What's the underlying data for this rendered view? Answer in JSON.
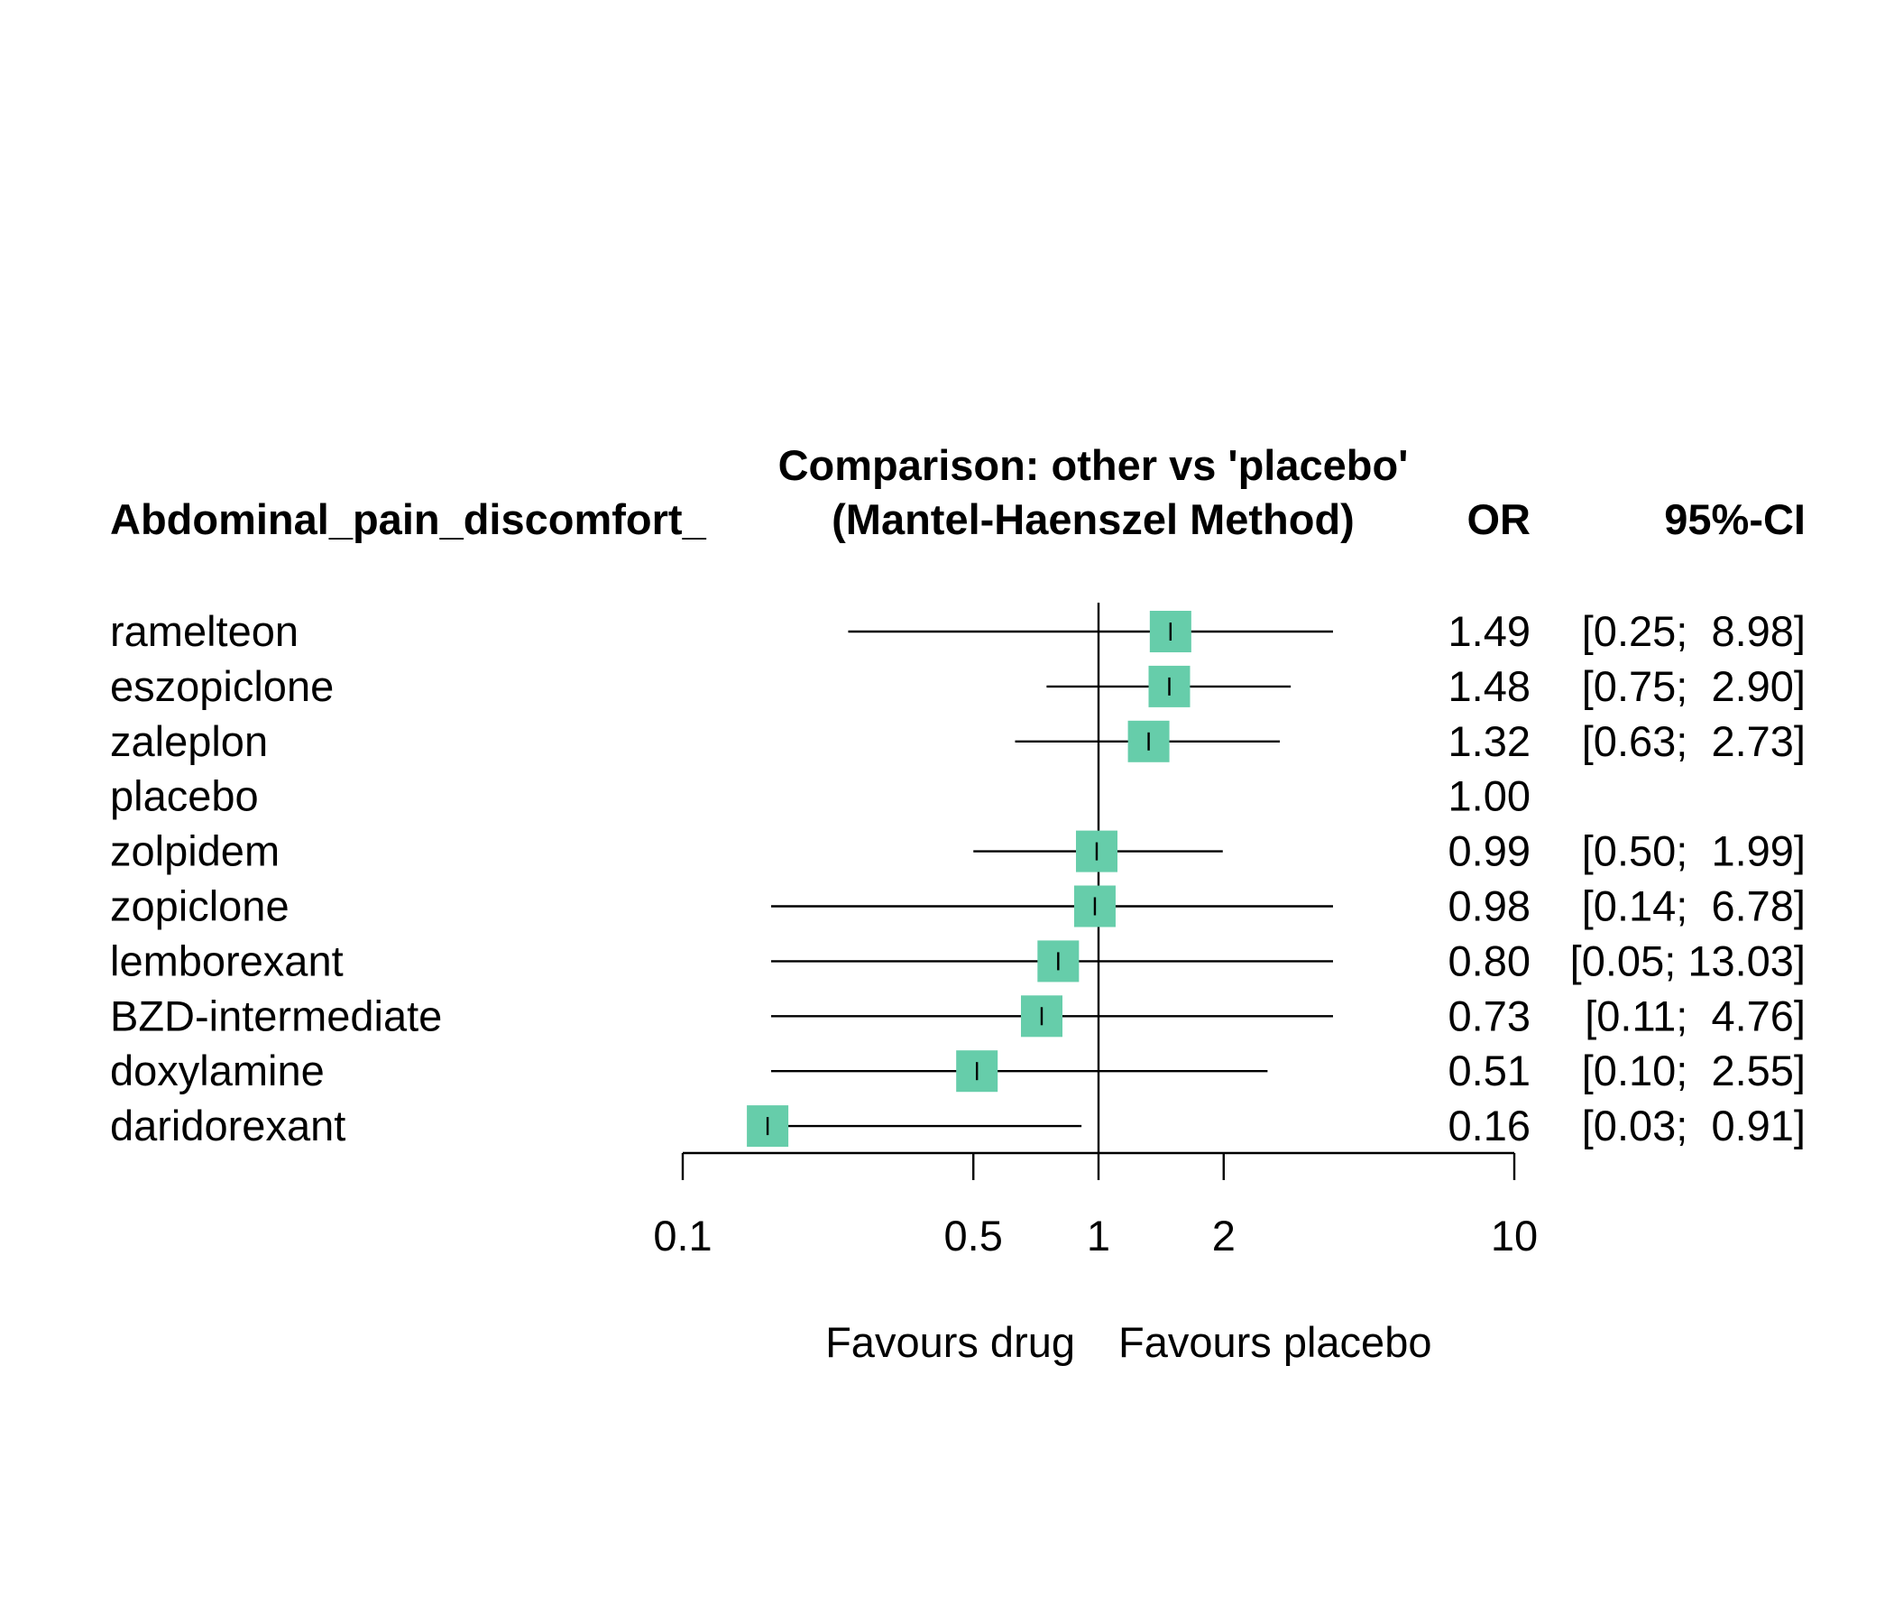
{
  "chart_data": {
    "type": "forest",
    "header": {
      "outcome_label": "Abdominal_pain_discomfort_",
      "title_line1": "Comparison: other vs 'placebo'",
      "title_line2": "(Mantel-Haenszel Method)",
      "or_header": "OR",
      "ci_header": "95%-CI"
    },
    "scale": "log",
    "xlim": [
      0.1,
      10
    ],
    "reference_value": 1,
    "ticks": [
      {
        "value": 0.1,
        "label": "0.1"
      },
      {
        "value": 0.5,
        "label": "0.5"
      },
      {
        "value": 1,
        "label": "1"
      },
      {
        "value": 2,
        "label": "2"
      },
      {
        "value": 10,
        "label": "10"
      }
    ],
    "favours_left": "Favours drug",
    "favours_right": "Favours placebo",
    "marker_color": "#66cdaa",
    "rows": [
      {
        "name": "ramelteon",
        "or": 1.49,
        "lower": 0.25,
        "upper": 8.98,
        "or_text": "1.49",
        "ci_text": "[0.25;  8.98]"
      },
      {
        "name": "eszopiclone",
        "or": 1.48,
        "lower": 0.75,
        "upper": 2.9,
        "or_text": "1.48",
        "ci_text": "[0.75;  2.90]"
      },
      {
        "name": "zaleplon",
        "or": 1.32,
        "lower": 0.63,
        "upper": 2.73,
        "or_text": "1.32",
        "ci_text": "[0.63;  2.73]"
      },
      {
        "name": "placebo",
        "or": 1.0,
        "lower": null,
        "upper": null,
        "or_text": "1.00",
        "ci_text": ""
      },
      {
        "name": "zolpidem",
        "or": 0.99,
        "lower": 0.5,
        "upper": 1.99,
        "or_text": "0.99",
        "ci_text": "[0.50;  1.99]"
      },
      {
        "name": "zopiclone",
        "or": 0.98,
        "lower": 0.14,
        "upper": 6.78,
        "or_text": "0.98",
        "ci_text": "[0.14;  6.78]"
      },
      {
        "name": "lemborexant",
        "or": 0.8,
        "lower": 0.05,
        "upper": 13.03,
        "or_text": "0.80",
        "ci_text": "[0.05; 13.03]"
      },
      {
        "name": "BZD-intermediate",
        "or": 0.73,
        "lower": 0.11,
        "upper": 4.76,
        "or_text": "0.73",
        "ci_text": "[0.11;  4.76]"
      },
      {
        "name": "doxylamine",
        "or": 0.51,
        "lower": 0.1,
        "upper": 2.55,
        "or_text": "0.51",
        "ci_text": "[0.10;  2.55]"
      },
      {
        "name": "daridorexant",
        "or": 0.16,
        "lower": 0.03,
        "upper": 0.91,
        "or_text": "0.16",
        "ci_text": "[0.03;  0.91]"
      }
    ]
  }
}
